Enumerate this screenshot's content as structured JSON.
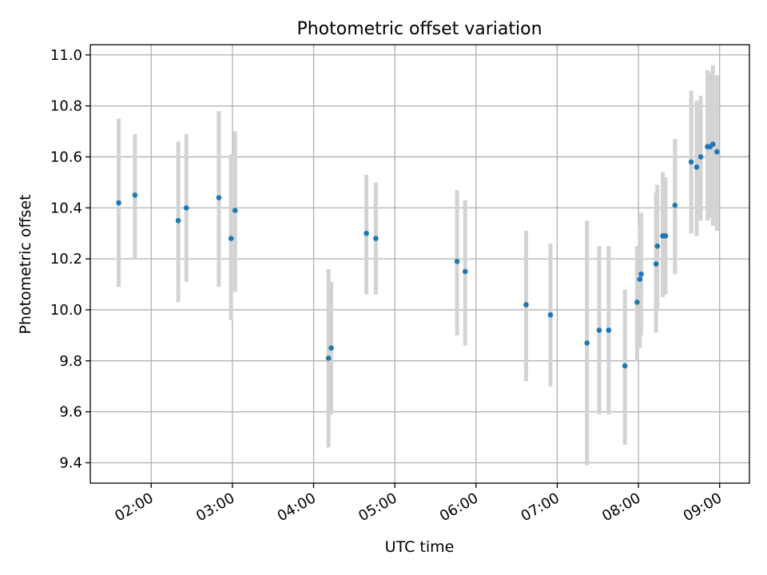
{
  "chart_data": {
    "type": "scatter",
    "title": "Photometric offset variation",
    "xlabel": "UTC time",
    "ylabel": "Photometric offset",
    "x_unit": "UTC hh:mm",
    "xlim": [
      "01:15",
      "09:22"
    ],
    "ylim": [
      9.32,
      11.04
    ],
    "xticks": [
      "02:00",
      "03:00",
      "04:00",
      "05:00",
      "06:00",
      "07:00",
      "08:00",
      "09:00"
    ],
    "yticks": [
      "9.4",
      "9.6",
      "9.8",
      "10.0",
      "10.2",
      "10.4",
      "10.6",
      "10.8",
      "11.0"
    ],
    "grid": true,
    "legend": "none",
    "colors": {
      "marker": "#1f77b4",
      "errorbar": "#d3d3d3",
      "grid": "#b0b0b0"
    },
    "series": [
      {
        "points": [
          {
            "x": "01:36",
            "y": 10.42,
            "ylow": 10.09,
            "yhigh": 10.75
          },
          {
            "x": "01:48",
            "y": 10.45,
            "ylow": 10.2,
            "yhigh": 10.69
          },
          {
            "x": "02:20",
            "y": 10.35,
            "ylow": 10.03,
            "yhigh": 10.66
          },
          {
            "x": "02:26",
            "y": 10.4,
            "ylow": 10.11,
            "yhigh": 10.69
          },
          {
            "x": "02:50",
            "y": 10.44,
            "ylow": 10.09,
            "yhigh": 10.78
          },
          {
            "x": "02:59",
            "y": 10.28,
            "ylow": 9.96,
            "yhigh": 10.61
          },
          {
            "x": "03:02",
            "y": 10.39,
            "ylow": 10.07,
            "yhigh": 10.7
          },
          {
            "x": "04:11",
            "y": 9.81,
            "ylow": 9.46,
            "yhigh": 10.16
          },
          {
            "x": "04:13",
            "y": 9.85,
            "ylow": 9.59,
            "yhigh": 10.11
          },
          {
            "x": "04:39",
            "y": 10.3,
            "ylow": 10.06,
            "yhigh": 10.53
          },
          {
            "x": "04:46",
            "y": 10.28,
            "ylow": 10.06,
            "yhigh": 10.5
          },
          {
            "x": "05:46",
            "y": 10.19,
            "ylow": 9.9,
            "yhigh": 10.47
          },
          {
            "x": "05:52",
            "y": 10.15,
            "ylow": 9.86,
            "yhigh": 10.43
          },
          {
            "x": "06:37",
            "y": 10.02,
            "ylow": 9.72,
            "yhigh": 10.31
          },
          {
            "x": "06:55",
            "y": 9.98,
            "ylow": 9.7,
            "yhigh": 10.26
          },
          {
            "x": "07:22",
            "y": 9.87,
            "ylow": 9.39,
            "yhigh": 10.35
          },
          {
            "x": "07:31",
            "y": 9.92,
            "ylow": 9.59,
            "yhigh": 10.25
          },
          {
            "x": "07:38",
            "y": 9.92,
            "ylow": 9.59,
            "yhigh": 10.25
          },
          {
            "x": "07:50",
            "y": 9.78,
            "ylow": 9.47,
            "yhigh": 10.08
          },
          {
            "x": "07:59",
            "y": 10.03,
            "ylow": 9.8,
            "yhigh": 10.25
          },
          {
            "x": "08:01",
            "y": 10.12,
            "ylow": 9.85,
            "yhigh": 10.33
          },
          {
            "x": "08:02",
            "y": 10.14,
            "ylow": 9.9,
            "yhigh": 10.38
          },
          {
            "x": "08:13",
            "y": 10.18,
            "ylow": 9.91,
            "yhigh": 10.46
          },
          {
            "x": "08:14",
            "y": 10.25,
            "ylow": 10.0,
            "yhigh": 10.49
          },
          {
            "x": "08:18",
            "y": 10.29,
            "ylow": 10.05,
            "yhigh": 10.54
          },
          {
            "x": "08:20",
            "y": 10.29,
            "ylow": 10.06,
            "yhigh": 10.52
          },
          {
            "x": "08:27",
            "y": 10.41,
            "ylow": 10.14,
            "yhigh": 10.67
          },
          {
            "x": "08:39",
            "y": 10.58,
            "ylow": 10.3,
            "yhigh": 10.86
          },
          {
            "x": "08:43",
            "y": 10.56,
            "ylow": 10.29,
            "yhigh": 10.82
          },
          {
            "x": "08:46",
            "y": 10.6,
            "ylow": 10.35,
            "yhigh": 10.84
          },
          {
            "x": "08:51",
            "y": 10.64,
            "ylow": 10.35,
            "yhigh": 10.94
          },
          {
            "x": "08:53",
            "y": 10.64,
            "ylow": 10.36,
            "yhigh": 10.93
          },
          {
            "x": "08:55",
            "y": 10.65,
            "ylow": 10.33,
            "yhigh": 10.96
          },
          {
            "x": "08:58",
            "y": 10.62,
            "ylow": 10.31,
            "yhigh": 10.92
          }
        ]
      }
    ]
  }
}
